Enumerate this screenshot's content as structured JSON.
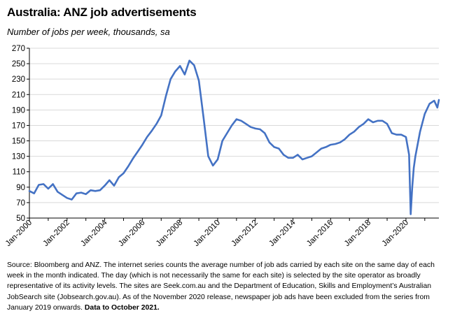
{
  "title": "Australia: ANZ job advertisements",
  "subtitle": "Number of jobs per week, thousands, sa",
  "source": {
    "text": "Source: Bloomberg and ANZ.  The internet series counts the average number of job ads carried by each site on the same day of each week in the month indicated. The day (which is not necessarily the same for each site) is selected by the site operator as broadly representative of its activity levels. The sites are Seek.com.au and the Department of Education, Skills and Employment’s Australian JobSearch site (Jobsearch.gov.au). As of the November 2020 release, newspaper job ads have been excluded from the series from January 2019 onwards. ",
    "bold": "Data to October 2021."
  },
  "colors": {
    "line": "#4472c4",
    "grid": "#d9d9d9",
    "axis": "#000000"
  },
  "chart_data": {
    "type": "line",
    "title": "Australia: ANZ job advertisements",
    "subtitle": "Number of jobs per week, thousands, sa",
    "xlabel": "",
    "ylabel": "",
    "ylim": [
      50,
      270
    ],
    "yticks": [
      50,
      70,
      90,
      110,
      130,
      150,
      170,
      190,
      210,
      230,
      250,
      270
    ],
    "xlim": [
      "2000-01",
      "2021-10"
    ],
    "xtick_labels": [
      "Jan-2000",
      "Jan-2002",
      "Jan-2004",
      "Jan-2006",
      "Jan-2008",
      "Jan-2010",
      "Jan-2012",
      "Jan-2014",
      "Jan-2016",
      "Jan-2018",
      "Jan-2020"
    ],
    "grid": true,
    "legend": "none",
    "series": [
      {
        "x": [
          "2000-01",
          "2000-04",
          "2000-07",
          "2000-10",
          "2001-01",
          "2001-04",
          "2001-07",
          "2001-10",
          "2002-01",
          "2002-04",
          "2002-07",
          "2002-10",
          "2003-01",
          "2003-04",
          "2003-07",
          "2003-10",
          "2004-01",
          "2004-04",
          "2004-07",
          "2004-10",
          "2005-01",
          "2005-04",
          "2005-07",
          "2005-10",
          "2006-01",
          "2006-04",
          "2006-07",
          "2006-10",
          "2007-01",
          "2007-04",
          "2007-07",
          "2007-10",
          "2008-01",
          "2008-04",
          "2008-07",
          "2008-10",
          "2009-01",
          "2009-04",
          "2009-07",
          "2009-10",
          "2010-01",
          "2010-04",
          "2010-07",
          "2010-10",
          "2011-01",
          "2011-04",
          "2011-07",
          "2011-10",
          "2012-01",
          "2012-04",
          "2012-07",
          "2012-10",
          "2013-01",
          "2013-04",
          "2013-07",
          "2013-10",
          "2014-01",
          "2014-04",
          "2014-07",
          "2014-10",
          "2015-01",
          "2015-04",
          "2015-07",
          "2015-10",
          "2016-01",
          "2016-04",
          "2016-07",
          "2016-10",
          "2017-01",
          "2017-04",
          "2017-07",
          "2017-10",
          "2018-01",
          "2018-04",
          "2018-07",
          "2018-10",
          "2019-01",
          "2019-04",
          "2019-07",
          "2019-10",
          "2020-01",
          "2020-03",
          "2020-04",
          "2020-05",
          "2020-06",
          "2020-07",
          "2020-10",
          "2021-01",
          "2021-04",
          "2021-07",
          "2021-09",
          "2021-10"
        ],
        "values": [
          85,
          82,
          93,
          94,
          88,
          94,
          84,
          80,
          76,
          74,
          82,
          83,
          81,
          86,
          85,
          86,
          92,
          99,
          92,
          103,
          108,
          117,
          127,
          136,
          145,
          155,
          163,
          172,
          183,
          208,
          230,
          240,
          247,
          236,
          254,
          248,
          228,
          180,
          130,
          118,
          126,
          150,
          160,
          170,
          178,
          176,
          172,
          168,
          166,
          165,
          160,
          148,
          142,
          140,
          132,
          128,
          128,
          132,
          126,
          128,
          130,
          135,
          140,
          142,
          145,
          146,
          148,
          152,
          158,
          162,
          168,
          172,
          178,
          174,
          176,
          176,
          172,
          160,
          158,
          158,
          155,
          132,
          55,
          90,
          115,
          130,
          162,
          185,
          198,
          202,
          193,
          203
        ]
      }
    ]
  }
}
